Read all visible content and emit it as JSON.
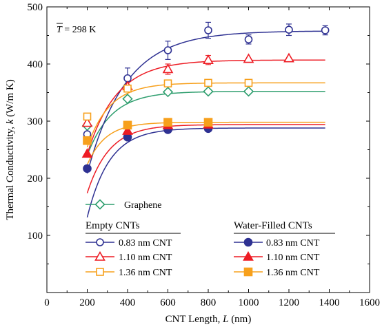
{
  "chart_data": {
    "type": "scatter",
    "xlabel": "CNT Length, L (nm)",
    "ylabel": "Thermal Conductivity, k (W/m K)",
    "xlim": [
      0,
      1600
    ],
    "ylim": [
      0,
      500
    ],
    "xticks": [
      0,
      200,
      400,
      600,
      800,
      1000,
      1200,
      1400,
      1600
    ],
    "yticks": [
      100,
      200,
      300,
      400,
      500
    ],
    "annotation": {
      "bar_text": "T",
      "rest_text": " = 298 K"
    },
    "legend": {
      "graphene": "Graphene",
      "empty_header": "Empty CNTs",
      "filled_header": "Water-Filled CNTs",
      "labels": [
        "0.83 nm CNT",
        "1.10 nm CNT",
        "1.36 nm CNT"
      ]
    },
    "series": [
      {
        "name": "Graphene",
        "color": "#2e9e6e",
        "marker": "diamond-open",
        "x": [
          200,
          400,
          600,
          800,
          1000
        ],
        "y": [
          292,
          339,
          351,
          352,
          352
        ],
        "fit": {
          "a": 352,
          "b": 150,
          "tau": 120
        }
      },
      {
        "name": "0.83 nm CNT",
        "group": "Empty CNTs",
        "color": "#2e3192",
        "marker": "circle-open",
        "x": [
          200,
          400,
          600,
          800,
          1000,
          1200,
          1380
        ],
        "y": [
          277,
          375,
          424,
          459,
          443,
          460,
          459
        ],
        "err": [
          12,
          18,
          16,
          14,
          8,
          10,
          8
        ],
        "fit": {
          "a": 458,
          "b": 300,
          "tau": 190
        }
      },
      {
        "name": "1.10 nm CNT",
        "group": "Empty CNTs",
        "color": "#ed1c24",
        "marker": "triangle-open",
        "x": [
          200,
          400,
          600,
          800,
          1000,
          1200
        ],
        "y": [
          297,
          361,
          391,
          407,
          409,
          410
        ],
        "err": [
          0,
          0,
          9,
          8,
          0,
          0
        ],
        "fit": {
          "a": 407,
          "b": 210,
          "tau": 145
        }
      },
      {
        "name": "1.36 nm CNT",
        "group": "Empty CNTs",
        "color": "#f7a01c",
        "marker": "square-open",
        "x": [
          200,
          400,
          600,
          800,
          1000
        ],
        "y": [
          308,
          357,
          366,
          367,
          367
        ],
        "fit": {
          "a": 367,
          "b": 155,
          "tau": 110
        }
      },
      {
        "name": "0.83 nm CNT",
        "group": "Water-Filled CNTs",
        "color": "#2e3192",
        "marker": "circle-filled",
        "x": [
          200,
          400,
          600,
          800
        ],
        "y": [
          217,
          272,
          285,
          287
        ],
        "fit": {
          "a": 288,
          "b": 215,
          "tau": 110
        }
      },
      {
        "name": "1.10 nm CNT",
        "group": "Water-Filled CNTs",
        "color": "#ed1c24",
        "marker": "triangle-filled",
        "x": [
          200,
          400,
          600,
          800
        ],
        "y": [
          243,
          283,
          293,
          294
        ],
        "fit": {
          "a": 294,
          "b": 165,
          "tau": 110
        }
      },
      {
        "name": "1.36 nm CNT",
        "group": "Water-Filled CNTs",
        "color": "#f7a01c",
        "marker": "square-filled",
        "x": [
          200,
          400,
          600,
          800
        ],
        "y": [
          266,
          293,
          298,
          298
        ],
        "fit": {
          "a": 298,
          "b": 110,
          "tau": 90
        }
      }
    ]
  }
}
